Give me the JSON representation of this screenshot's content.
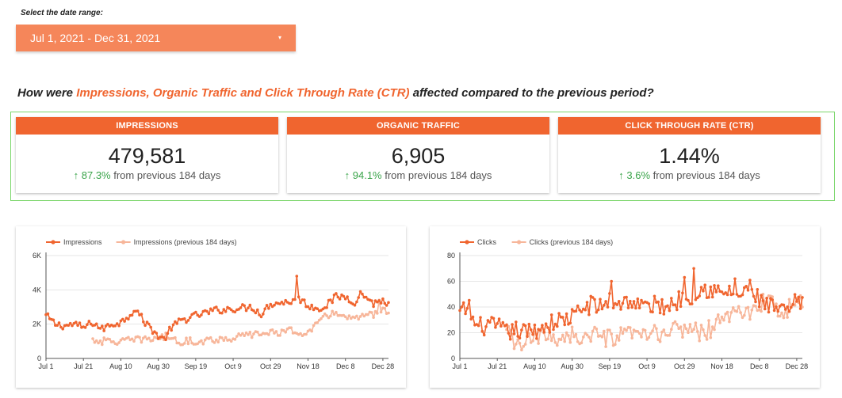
{
  "date_range": {
    "label": "Select the date range:",
    "value": "Jul 1, 2021 - Dec 31, 2021",
    "caret": "▾"
  },
  "question": {
    "prefix": "How were ",
    "highlight": "Impressions, Organic Traffic and Click Through Rate (CTR)",
    "suffix": " affected compared to the previous period?"
  },
  "colors": {
    "accent": "#f0652f",
    "accent_light": "#f5865a",
    "previous": "#f7b69a",
    "positive": "#3aa44a",
    "frame": "#7bd66b"
  },
  "kpis": [
    {
      "title": "IMPRESSIONS",
      "value": "479,581",
      "arrow": "↑",
      "delta": "87.3%",
      "delta_text": " from previous 184 days"
    },
    {
      "title": "ORGANIC TRAFFIC",
      "value": "6,905",
      "arrow": "↑",
      "delta": "94.1%",
      "delta_text": " from previous 184 days"
    },
    {
      "title": "CLICK THROUGH RATE (CTR)",
      "value": "1.44%",
      "arrow": "↑",
      "delta": "3.6%",
      "delta_text": " from previous 184 days"
    }
  ],
  "chart_data": [
    {
      "type": "line",
      "x_labels": [
        "Jul 1",
        "Jul 21",
        "Aug 10",
        "Aug 30",
        "Sep 19",
        "Oct 9",
        "Oct 29",
        "Nov 18",
        "Dec 8",
        "Dec 28"
      ],
      "x_label_days": [
        0,
        20,
        40,
        60,
        80,
        100,
        120,
        140,
        160,
        180
      ],
      "days": 184,
      "ylim": [
        0,
        6000
      ],
      "y_ticks": [
        0,
        2000,
        4000,
        6000
      ],
      "y_tick_labels": [
        "0",
        "2K",
        "4K",
        "6K"
      ],
      "legend_position": "top-left",
      "series": [
        {
          "name": "Impressions",
          "anchors": [
            [
              0,
              2500
            ],
            [
              5,
              2000
            ],
            [
              10,
              1900
            ],
            [
              15,
              2000
            ],
            [
              20,
              1800
            ],
            [
              25,
              2100
            ],
            [
              30,
              1700
            ],
            [
              35,
              2000
            ],
            [
              40,
              2100
            ],
            [
              45,
              2600
            ],
            [
              48,
              2900
            ],
            [
              52,
              2200
            ],
            [
              55,
              1900
            ],
            [
              60,
              1300
            ],
            [
              63,
              1100
            ],
            [
              67,
              1800
            ],
            [
              72,
              2200
            ],
            [
              80,
              2500
            ],
            [
              90,
              2800
            ],
            [
              100,
              2900
            ],
            [
              110,
              3000
            ],
            [
              115,
              2600
            ],
            [
              120,
              3200
            ],
            [
              130,
              3300
            ],
            [
              135,
              3500
            ],
            [
              140,
              3100
            ],
            [
              145,
              2900
            ],
            [
              150,
              3100
            ],
            [
              155,
              3600
            ],
            [
              160,
              3600
            ],
            [
              165,
              3300
            ],
            [
              170,
              3700
            ],
            [
              175,
              3200
            ],
            [
              180,
              3400
            ],
            [
              183,
              3100
            ]
          ],
          "spikes": [
            [
              134,
              4800
            ],
            [
              168,
              3900
            ]
          ]
        },
        {
          "name": "Impressions (previous 184 days)",
          "anchors": [
            [
              25,
              1100
            ],
            [
              30,
              1000
            ],
            [
              40,
              1000
            ],
            [
              50,
              1100
            ],
            [
              60,
              1200
            ],
            [
              65,
              1300
            ],
            [
              70,
              1000
            ],
            [
              80,
              1000
            ],
            [
              90,
              1100
            ],
            [
              100,
              1200
            ],
            [
              110,
              1400
            ],
            [
              120,
              1500
            ],
            [
              130,
              1600
            ],
            [
              140,
              1500
            ],
            [
              145,
              2000
            ],
            [
              150,
              2500
            ],
            [
              155,
              2700
            ],
            [
              160,
              2400
            ],
            [
              165,
              2300
            ],
            [
              170,
              2400
            ],
            [
              175,
              2600
            ],
            [
              180,
              2900
            ],
            [
              183,
              2600
            ]
          ],
          "spikes": [
            [
              178,
              3400
            ]
          ]
        }
      ]
    },
    {
      "type": "line",
      "x_labels": [
        "Jul 1",
        "Jul 21",
        "Aug 10",
        "Aug 30",
        "Sep 19",
        "Oct 9",
        "Oct 29",
        "Nov 18",
        "Dec 8",
        "Dec 28"
      ],
      "x_label_days": [
        0,
        20,
        40,
        60,
        80,
        100,
        120,
        140,
        160,
        180
      ],
      "days": 184,
      "ylim": [
        0,
        80
      ],
      "y_ticks": [
        0,
        20,
        40,
        60,
        80
      ],
      "y_tick_labels": [
        "0",
        "20",
        "40",
        "60",
        "80"
      ],
      "legend_position": "top-left",
      "series": [
        {
          "name": "Clicks",
          "anchors": [
            [
              0,
              35
            ],
            [
              5,
              40
            ],
            [
              8,
              25
            ],
            [
              15,
              25
            ],
            [
              20,
              25
            ],
            [
              25,
              20
            ],
            [
              30,
              22
            ],
            [
              35,
              20
            ],
            [
              40,
              22
            ],
            [
              45,
              25
            ],
            [
              50,
              28
            ],
            [
              55,
              30
            ],
            [
              60,
              32
            ],
            [
              65,
              38
            ],
            [
              70,
              42
            ],
            [
              75,
              40
            ],
            [
              80,
              45
            ],
            [
              85,
              43
            ],
            [
              90,
              45
            ],
            [
              95,
              42
            ],
            [
              100,
              40
            ],
            [
              105,
              42
            ],
            [
              110,
              40
            ],
            [
              115,
              44
            ],
            [
              120,
              48
            ],
            [
              125,
              50
            ],
            [
              130,
              55
            ],
            [
              135,
              53
            ],
            [
              140,
              50
            ],
            [
              145,
              52
            ],
            [
              150,
              48
            ],
            [
              155,
              55
            ],
            [
              160,
              45
            ],
            [
              165,
              40
            ],
            [
              170,
              38
            ],
            [
              175,
              35
            ],
            [
              180,
              45
            ],
            [
              183,
              42
            ]
          ],
          "spikes": [
            [
              81,
              60
            ],
            [
              120,
              63
            ],
            [
              125,
              70
            ],
            [
              147,
              62
            ],
            [
              152,
              55
            ]
          ]
        },
        {
          "name": "Clicks (previous 184 days)",
          "anchors": [
            [
              25,
              20
            ],
            [
              28,
              15
            ],
            [
              30,
              10
            ],
            [
              35,
              12
            ],
            [
              40,
              15
            ],
            [
              45,
              18
            ],
            [
              50,
              16
            ],
            [
              55,
              17
            ],
            [
              60,
              19
            ],
            [
              65,
              15
            ],
            [
              70,
              18
            ],
            [
              75,
              16
            ],
            [
              80,
              15
            ],
            [
              90,
              18
            ],
            [
              100,
              18
            ],
            [
              110,
              20
            ],
            [
              120,
              24
            ],
            [
              125,
              22
            ],
            [
              130,
              20
            ],
            [
              135,
              24
            ],
            [
              140,
              30
            ],
            [
              145,
              35
            ],
            [
              150,
              38
            ],
            [
              155,
              34
            ],
            [
              160,
              40
            ],
            [
              165,
              42
            ],
            [
              170,
              40
            ],
            [
              175,
              38
            ],
            [
              180,
              45
            ],
            [
              183,
              40
            ]
          ],
          "spikes": [
            [
              162,
              50
            ]
          ]
        }
      ]
    }
  ]
}
